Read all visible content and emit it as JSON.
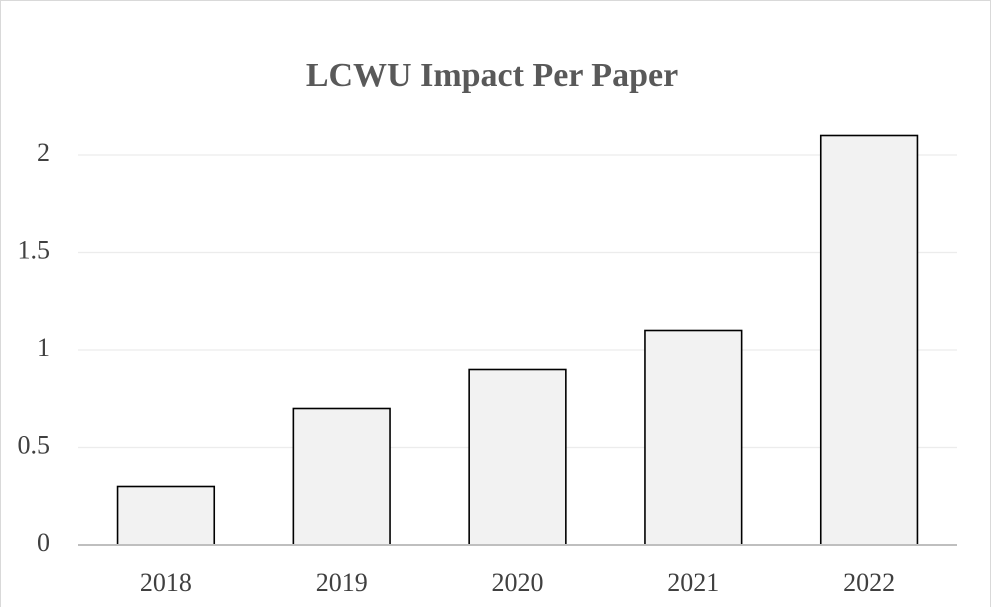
{
  "chart_data": {
    "type": "bar",
    "title": "LCWU Impact Per Paper",
    "categories": [
      "2018",
      "2019",
      "2020",
      "2021",
      "2022"
    ],
    "values": [
      0.3,
      0.7,
      0.9,
      1.1,
      2.1
    ],
    "color": "#f2f2f2",
    "ylim": [
      0,
      2
    ],
    "yticks": [
      0,
      0.5,
      1,
      1.5,
      2
    ],
    "grid": true
  }
}
